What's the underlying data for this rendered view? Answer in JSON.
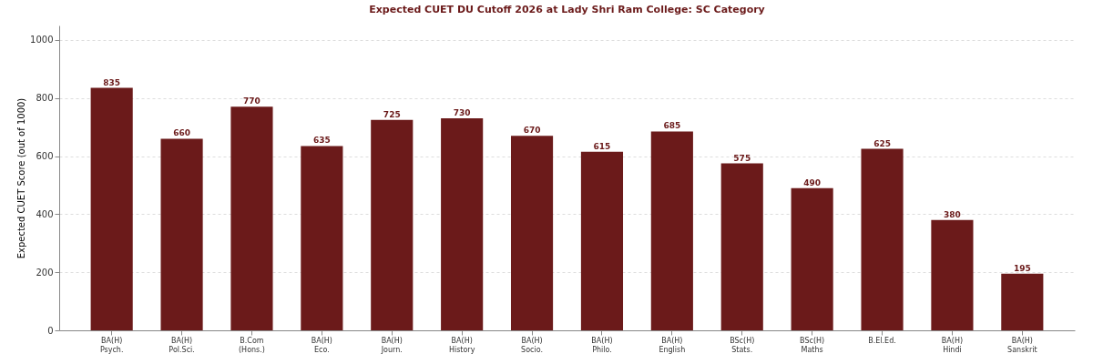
{
  "chart_data": {
    "type": "bar",
    "title": "Expected CUET DU Cutoff 2026 at Lady Shri Ram College: SC Category",
    "ylabel": "Expected CUET Score (out of 1000)",
    "categories": [
      "BA(H)\nPsych.",
      "BA(H)\nPol.Sci.",
      "B.Com\n(Hons.)",
      "BA(H)\nEco.",
      "BA(H)\nJourn.",
      "BA(H)\nHistory",
      "BA(H)\nSocio.",
      "BA(H)\nPhilo.",
      "BA(H)\nEnglish",
      "BSc(H)\nStats.",
      "BSc(H)\nMaths",
      "B.El.Ed.",
      "BA(H)\nHindi",
      "BA(H)\nSanskrit"
    ],
    "values": [
      835,
      660,
      770,
      635,
      725,
      730,
      670,
      615,
      685,
      575,
      490,
      625,
      380,
      195
    ],
    "color": "#6b1a1a",
    "ylim": [
      0,
      1050
    ],
    "yticks": [
      0,
      200,
      400,
      600,
      800,
      1000
    ],
    "grid": "y",
    "data_labels": true
  }
}
